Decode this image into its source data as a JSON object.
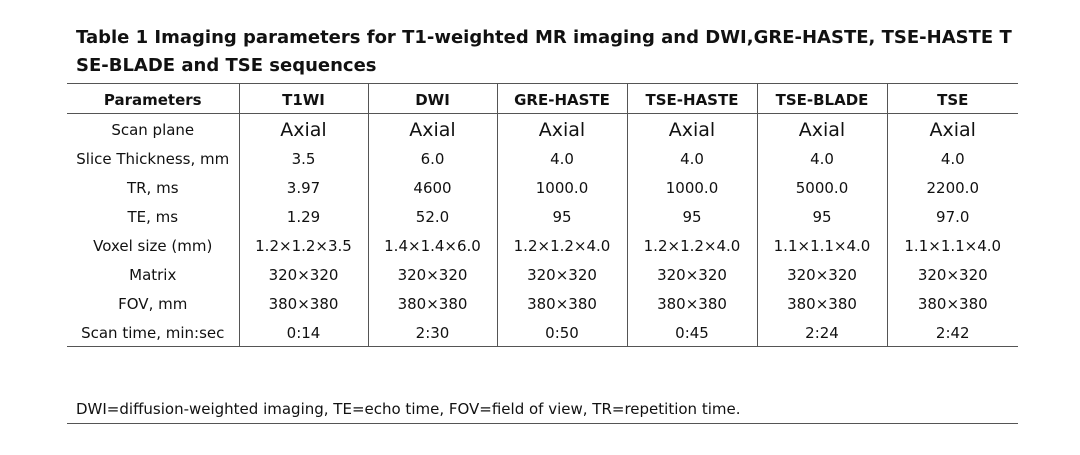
{
  "title": "Table 1 Imaging parameters for T1-weighted MR imaging and DWI,GRE-HASTE, TSE-HASTE TSE-BLADE and TSE sequences",
  "table": {
    "header": [
      "Parameters",
      "T1WI",
      "DWI",
      "GRE-HASTE",
      "TSE-HASTE",
      "TSE-BLADE",
      "TSE"
    ],
    "rows": [
      [
        "Scan plane",
        "Axial",
        "Axial",
        "Axial",
        "Axial",
        "Axial",
        "Axial"
      ],
      [
        "Slice Thickness, mm",
        "3.5",
        "6.0",
        "4.0",
        "4.0",
        "4.0",
        "4.0"
      ],
      [
        "TR, ms",
        "3.97",
        "4600",
        "1000.0",
        "1000.0",
        "5000.0",
        "2200.0"
      ],
      [
        "TE, ms",
        "1.29",
        "52.0",
        "95",
        "95",
        "95",
        "97.0"
      ],
      [
        "Voxel size (mm)",
        "1.2×1.2×3.5",
        "1.4×1.4×6.0",
        "1.2×1.2×4.0",
        "1.2×1.2×4.0",
        "1.1×1.1×4.0",
        "1.1×1.1×4.0"
      ],
      [
        "Matrix",
        "320×320",
        "320×320",
        "320×320",
        "320×320",
        "320×320",
        "320×320"
      ],
      [
        "FOV, mm",
        "380×380",
        "380×380",
        "380×380",
        "380×380",
        "380×380",
        "380×380"
      ],
      [
        "Scan time, min:sec",
        "0:14",
        "2:30",
        "0:50",
        "0:45",
        "2:24",
        "2:42"
      ]
    ]
  },
  "footnote": "DWI=diffusion-weighted imaging, TE=echo time, FOV=field of view, TR=repetition time."
}
